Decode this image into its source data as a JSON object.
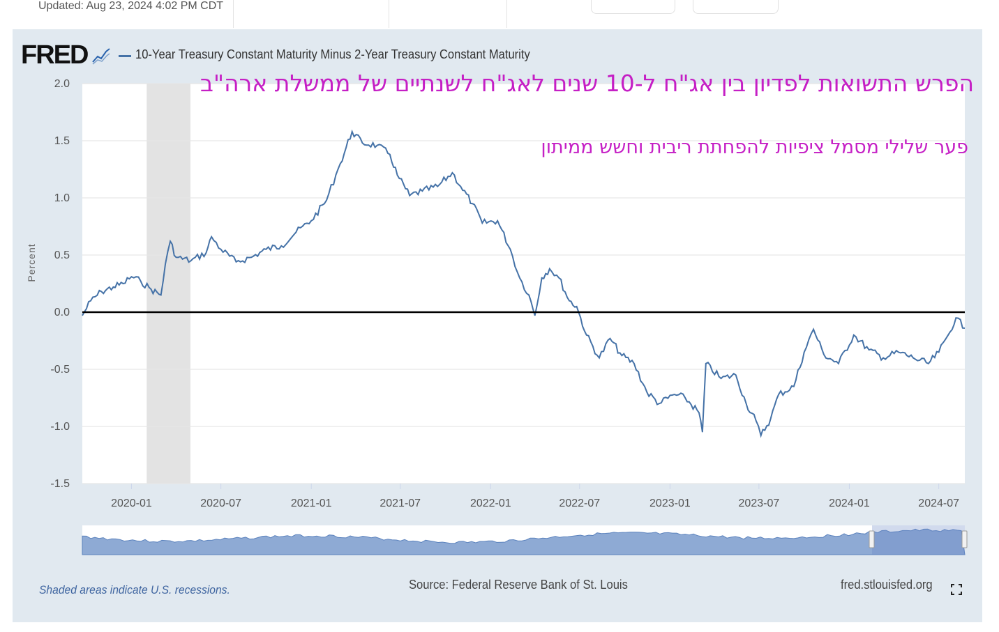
{
  "header": {
    "updated": "Updated: Aug 23, 2024 4:02 PM CDT"
  },
  "branding": {
    "logo_text": "FRED",
    "site": "fred.stlouisfed.org"
  },
  "footer": {
    "recession_note": "Shaded areas indicate U.S. recessions.",
    "source": "Source: Federal Reserve Bank of St. Louis"
  },
  "annotations": {
    "title_he": "הפרש התשואות לפדיון בין אג\"ח ל-10 שנים לאג\"ח לשנתיים של ממשלת ארה\"ב",
    "subtitle_he": "פער שלילי מסמל ציפיות להפחתת ריבית וחשש ממיתון"
  },
  "colors": {
    "series": "#4572a7",
    "annotation": "#c51fc5",
    "panel": "#e1e9f0",
    "recession": "#e3e3e3"
  },
  "chart_data": {
    "type": "line",
    "title": "",
    "xlabel": "",
    "ylabel": "Percent",
    "ylim": [
      -1.5,
      2.0
    ],
    "xlim": [
      "2019-09-23",
      "2024-08-23"
    ],
    "yticks": [
      "2.0",
      "1.5",
      "1.0",
      "0.5",
      "0.0",
      "-0.5",
      "-1.0",
      "-1.5"
    ],
    "xticks": [
      "2020-01",
      "2020-07",
      "2021-01",
      "2021-07",
      "2022-01",
      "2022-07",
      "2023-01",
      "2023-07",
      "2024-01",
      "2024-07"
    ],
    "reference_line": 0.0,
    "grid": true,
    "recessions": [
      {
        "start": "2020-02-01",
        "end": "2020-04-30"
      }
    ],
    "series": [
      {
        "name": "10-Year Treasury Constant Maturity Minus 2-Year Treasury Constant Maturity",
        "points": [
          [
            "2019-09-23",
            -0.03
          ],
          [
            "2019-10-10",
            0.1
          ],
          [
            "2019-11-01",
            0.18
          ],
          [
            "2019-11-25",
            0.22
          ],
          [
            "2019-12-15",
            0.25
          ],
          [
            "2020-01-01",
            0.31
          ],
          [
            "2020-01-20",
            0.27
          ],
          [
            "2020-02-10",
            0.2
          ],
          [
            "2020-03-01",
            0.15
          ],
          [
            "2020-03-10",
            0.42
          ],
          [
            "2020-03-20",
            0.62
          ],
          [
            "2020-04-01",
            0.48
          ],
          [
            "2020-05-01",
            0.45
          ],
          [
            "2020-06-01",
            0.52
          ],
          [
            "2020-06-12",
            0.66
          ],
          [
            "2020-07-01",
            0.55
          ],
          [
            "2020-08-01",
            0.44
          ],
          [
            "2020-09-01",
            0.48
          ],
          [
            "2020-10-01",
            0.55
          ],
          [
            "2020-11-01",
            0.58
          ],
          [
            "2020-12-01",
            0.7
          ],
          [
            "2021-01-01",
            0.8
          ],
          [
            "2021-02-01",
            0.98
          ],
          [
            "2021-02-20",
            1.2
          ],
          [
            "2021-03-01",
            1.3
          ],
          [
            "2021-03-25",
            1.58
          ],
          [
            "2021-04-15",
            1.48
          ],
          [
            "2021-05-15",
            1.46
          ],
          [
            "2021-06-10",
            1.38
          ],
          [
            "2021-06-25",
            1.2
          ],
          [
            "2021-07-20",
            1.02
          ],
          [
            "2021-08-15",
            1.06
          ],
          [
            "2021-09-15",
            1.1
          ],
          [
            "2021-10-15",
            1.22
          ],
          [
            "2021-11-01",
            1.1
          ],
          [
            "2021-11-25",
            0.95
          ],
          [
            "2021-12-15",
            0.78
          ],
          [
            "2022-01-15",
            0.8
          ],
          [
            "2022-02-10",
            0.55
          ],
          [
            "2022-03-01",
            0.3
          ],
          [
            "2022-03-20",
            0.15
          ],
          [
            "2022-04-01",
            -0.03
          ],
          [
            "2022-04-15",
            0.3
          ],
          [
            "2022-05-01",
            0.38
          ],
          [
            "2022-05-20",
            0.3
          ],
          [
            "2022-06-10",
            0.1
          ],
          [
            "2022-06-25",
            0.05
          ],
          [
            "2022-07-15",
            -0.2
          ],
          [
            "2022-08-10",
            -0.4
          ],
          [
            "2022-09-01",
            -0.23
          ],
          [
            "2022-09-25",
            -0.38
          ],
          [
            "2022-10-20",
            -0.45
          ],
          [
            "2022-11-15",
            -0.7
          ],
          [
            "2022-12-10",
            -0.8
          ],
          [
            "2023-01-10",
            -0.72
          ],
          [
            "2023-02-01",
            -0.75
          ],
          [
            "2023-03-01",
            -0.88
          ],
          [
            "2023-03-08",
            -1.05
          ],
          [
            "2023-03-15",
            -0.45
          ],
          [
            "2023-04-15",
            -0.58
          ],
          [
            "2023-05-15",
            -0.55
          ],
          [
            "2023-06-05",
            -0.8
          ],
          [
            "2023-06-25",
            -0.95
          ],
          [
            "2023-07-05",
            -1.08
          ],
          [
            "2023-07-25",
            -0.93
          ],
          [
            "2023-08-10",
            -0.72
          ],
          [
            "2023-09-10",
            -0.65
          ],
          [
            "2023-10-01",
            -0.35
          ],
          [
            "2023-10-20",
            -0.15
          ],
          [
            "2023-11-10",
            -0.37
          ],
          [
            "2023-12-10",
            -0.45
          ],
          [
            "2024-01-10",
            -0.2
          ],
          [
            "2024-02-10",
            -0.33
          ],
          [
            "2024-03-10",
            -0.4
          ],
          [
            "2024-04-10",
            -0.35
          ],
          [
            "2024-05-10",
            -0.4
          ],
          [
            "2024-06-10",
            -0.45
          ],
          [
            "2024-07-01",
            -0.35
          ],
          [
            "2024-07-20",
            -0.2
          ],
          [
            "2024-08-05",
            -0.05
          ],
          [
            "2024-08-23",
            -0.14
          ]
        ]
      }
    ]
  }
}
